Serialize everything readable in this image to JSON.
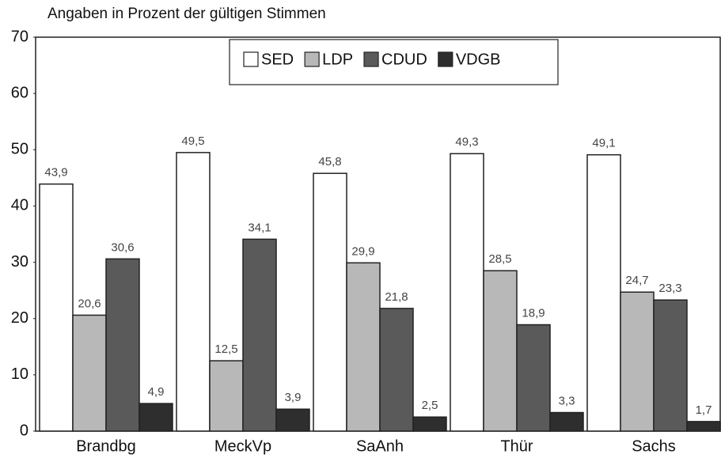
{
  "chart_data": {
    "type": "bar",
    "title": "Angaben  in Prozent der gültigen Stimmen",
    "categories": [
      "Brandbg",
      "MeckVp",
      "SaAnh",
      "Thür",
      "Sachs"
    ],
    "series": [
      {
        "name": "SED",
        "color": "#ffffff",
        "values": [
          43.9,
          49.5,
          45.8,
          49.3,
          49.1
        ],
        "value_labels": [
          "43,9",
          "49,5",
          "45,8",
          "49,3",
          "49,1"
        ]
      },
      {
        "name": "LDP",
        "color": "#b8b8b8",
        "values": [
          20.6,
          12.5,
          29.9,
          28.5,
          24.7
        ],
        "value_labels": [
          "20,6",
          "12,5",
          "29,9",
          "28,5",
          "24,7"
        ]
      },
      {
        "name": "CDUD",
        "color": "#5a5a5a",
        "values": [
          30.6,
          34.1,
          21.8,
          18.9,
          23.3
        ],
        "value_labels": [
          "30,6",
          "34,1",
          "21,8",
          "18,9",
          "23,3"
        ]
      },
      {
        "name": "VDGB",
        "color": "#2e2e2e",
        "values": [
          4.9,
          3.9,
          2.5,
          3.3,
          1.7
        ],
        "value_labels": [
          "4,9",
          "3,9",
          "2,5",
          "3,3",
          "1,7"
        ]
      }
    ],
    "ylim": [
      0,
      70
    ],
    "yticks": [
      0,
      10,
      20,
      30,
      40,
      50,
      60,
      70
    ]
  }
}
